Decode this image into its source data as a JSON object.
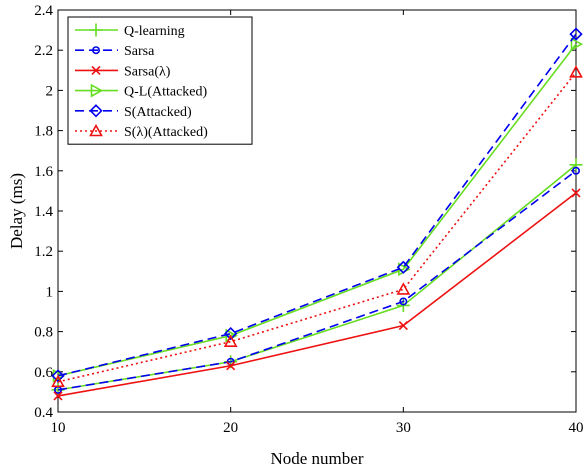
{
  "chart_data": {
    "type": "line",
    "xlabel": "Node number",
    "ylabel": "Delay (ms)",
    "x": [
      10,
      20,
      30,
      40
    ],
    "xlim": [
      10,
      40
    ],
    "ylim": [
      0.4,
      2.4
    ],
    "xticks": [
      "10",
      "20",
      "30",
      "40"
    ],
    "yticks": [
      "0.4",
      "0.6",
      "0.8",
      "1",
      "1.2",
      "1.4",
      "1.6",
      "1.8",
      "2",
      "2.2",
      "2.4"
    ],
    "grid": false,
    "legend_position": "top-left",
    "series": [
      {
        "name": "Q-learning",
        "values": [
          0.51,
          0.65,
          0.93,
          1.63
        ],
        "color": "#66dd22",
        "dash": "solid",
        "marker": "plus"
      },
      {
        "name": "Sarsa",
        "values": [
          0.51,
          0.65,
          0.95,
          1.6
        ],
        "color": "#0000ee",
        "dash": "dashed",
        "marker": "circle"
      },
      {
        "name": "Sarsa(λ)",
        "values": [
          0.48,
          0.63,
          0.83,
          1.49
        ],
        "color": "#ee1111",
        "dash": "solid",
        "marker": "x"
      },
      {
        "name": "Q-L(Attacked)",
        "values": [
          0.58,
          0.78,
          1.11,
          2.23
        ],
        "color": "#66dd22",
        "dash": "solid",
        "marker": "triangle-right"
      },
      {
        "name": "S(Attacked)",
        "values": [
          0.58,
          0.79,
          1.12,
          2.28
        ],
        "color": "#0000ee",
        "dash": "dashed",
        "marker": "diamond"
      },
      {
        "name": "S(λ)(Attacked)",
        "values": [
          0.55,
          0.75,
          1.01,
          2.09
        ],
        "color": "#ee1111",
        "dash": "dotted",
        "marker": "triangle-up"
      }
    ]
  }
}
